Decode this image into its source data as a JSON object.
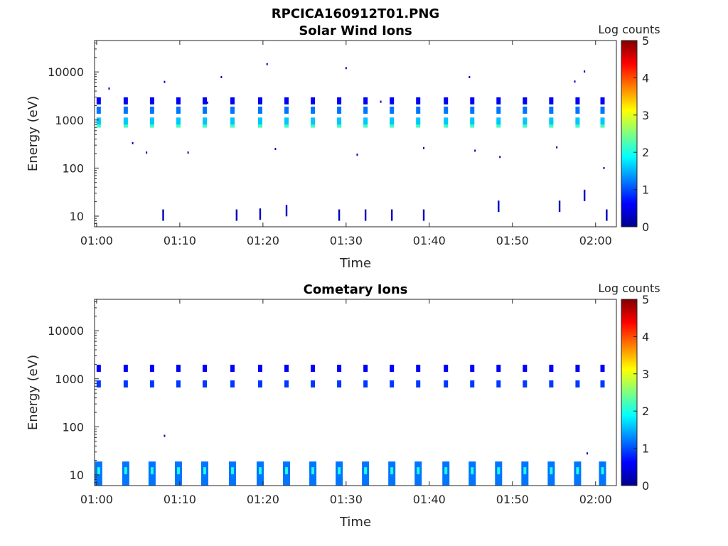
{
  "figure": {
    "title": "RPCICA160912T01.PNG"
  },
  "chart_data": [
    {
      "type": "heatmap",
      "title": "Solar Wind Ions",
      "xlabel": "Time",
      "ylabel": "Energy (eV)",
      "y_scale": "log",
      "xlim": [
        "00:59:45",
        "02:02:30"
      ],
      "ylim": [
        6,
        45000
      ],
      "x_ticks": [
        "01:00",
        "01:10",
        "01:20",
        "01:30",
        "01:40",
        "01:50",
        "02:00"
      ],
      "y_ticks": [
        10,
        100,
        1000,
        10000
      ],
      "y_tick_labels": [
        "10",
        "100",
        "1000",
        "10000"
      ],
      "colorbar": {
        "label": "Log counts",
        "range": [
          0,
          5
        ],
        "ticks": [
          "0",
          "1",
          "2",
          "3",
          "4",
          "5"
        ],
        "colormap": "jet"
      },
      "periodic_bursts": {
        "times": [
          "01:00:15",
          "01:03:30",
          "01:06:40",
          "01:09:50",
          "01:13:00",
          "01:16:20",
          "01:19:40",
          "01:22:50",
          "01:26:00",
          "01:29:10",
          "01:32:20",
          "01:35:30",
          "01:38:40",
          "01:42:00",
          "01:45:10",
          "01:48:20",
          "01:51:30",
          "01:54:40",
          "01:57:50",
          "02:00:50"
        ],
        "energy_bands_eV": [
          {
            "energy": 820,
            "log_counts": 2.2
          },
          {
            "energy": 950,
            "log_counts": 1.6
          },
          {
            "energy": 1600,
            "log_counts": 1.2
          },
          {
            "energy": 2500,
            "log_counts": 0.6
          }
        ]
      },
      "scattered_points": [
        {
          "time": "01:01:30",
          "energy": 4500,
          "log_counts": 0.3
        },
        {
          "time": "01:04:20",
          "energy": 330,
          "log_counts": 0.3
        },
        {
          "time": "01:06:00",
          "energy": 210,
          "log_counts": 0.3
        },
        {
          "time": "01:08:10",
          "energy": 6200,
          "log_counts": 0.3
        },
        {
          "time": "01:11:00",
          "energy": 210,
          "log_counts": 0.3
        },
        {
          "time": "01:13:20",
          "energy": 2300,
          "log_counts": 0.3
        },
        {
          "time": "01:15:00",
          "energy": 7800,
          "log_counts": 0.3
        },
        {
          "time": "01:20:30",
          "energy": 14500,
          "log_counts": 0.3
        },
        {
          "time": "01:21:30",
          "energy": 250,
          "log_counts": 0.3
        },
        {
          "time": "01:30:00",
          "energy": 12000,
          "log_counts": 0.3
        },
        {
          "time": "01:31:20",
          "energy": 190,
          "log_counts": 0.3
        },
        {
          "time": "01:34:10",
          "energy": 2400,
          "log_counts": 0.3
        },
        {
          "time": "01:39:20",
          "energy": 260,
          "log_counts": 0.3
        },
        {
          "time": "01:44:50",
          "energy": 7800,
          "log_counts": 0.3
        },
        {
          "time": "01:45:30",
          "energy": 230,
          "log_counts": 0.3
        },
        {
          "time": "01:48:30",
          "energy": 170,
          "log_counts": 0.3
        },
        {
          "time": "01:55:20",
          "energy": 270,
          "log_counts": 0.3
        },
        {
          "time": "01:57:30",
          "energy": 6300,
          "log_counts": 0.3
        },
        {
          "time": "01:58:40",
          "energy": 10200,
          "log_counts": 0.3
        },
        {
          "time": "02:01:00",
          "energy": 100,
          "log_counts": 0.3
        }
      ],
      "low_energy_streaks": [
        {
          "time": "01:08:00",
          "energy": 10.5,
          "log_counts": 0.3
        },
        {
          "time": "01:16:50",
          "energy": 10.5,
          "log_counts": 0.3
        },
        {
          "time": "01:19:40",
          "energy": 11.0,
          "log_counts": 0.3
        },
        {
          "time": "01:22:50",
          "energy": 13.0,
          "log_counts": 0.3
        },
        {
          "time": "01:29:10",
          "energy": 10.5,
          "log_counts": 0.3
        },
        {
          "time": "01:32:20",
          "energy": 10.5,
          "log_counts": 0.3
        },
        {
          "time": "01:35:30",
          "energy": 10.5,
          "log_counts": 0.3
        },
        {
          "time": "01:39:20",
          "energy": 10.5,
          "log_counts": 0.3
        },
        {
          "time": "01:48:20",
          "energy": 16.0,
          "log_counts": 0.3
        },
        {
          "time": "01:55:40",
          "energy": 16.0,
          "log_counts": 0.3
        },
        {
          "time": "01:58:40",
          "energy": 27.0,
          "log_counts": 0.3
        },
        {
          "time": "02:01:20",
          "energy": 10.5,
          "log_counts": 0.3
        }
      ]
    },
    {
      "type": "heatmap",
      "title": "Cometary Ions",
      "xlabel": "Time",
      "ylabel": "Energy (eV)",
      "y_scale": "log",
      "xlim": [
        "00:59:45",
        "02:02:30"
      ],
      "ylim": [
        6,
        45000
      ],
      "x_ticks": [
        "01:00",
        "01:10",
        "01:20",
        "01:30",
        "01:40",
        "01:50",
        "02:00"
      ],
      "y_ticks": [
        10,
        100,
        1000,
        10000
      ],
      "y_tick_labels": [
        "10",
        "100",
        "1000",
        "10000"
      ],
      "colorbar": {
        "label": "Log counts",
        "range": [
          0,
          5
        ],
        "ticks": [
          "0",
          "1",
          "2",
          "3",
          "4",
          "5"
        ],
        "colormap": "jet"
      },
      "periodic_bursts": {
        "times": [
          "01:00:15",
          "01:03:30",
          "01:06:40",
          "01:09:50",
          "01:13:00",
          "01:16:20",
          "01:19:40",
          "01:22:50",
          "01:26:00",
          "01:29:10",
          "01:32:20",
          "01:35:30",
          "01:38:40",
          "01:42:00",
          "01:45:10",
          "01:48:20",
          "01:51:30",
          "01:54:40",
          "01:57:50",
          "02:00:50"
        ],
        "energy_bands_eV": [
          {
            "energy": 780,
            "log_counts": 0.9
          },
          {
            "energy": 1650,
            "log_counts": 0.6
          }
        ],
        "low_energy_band": {
          "energy_min": 6,
          "energy_max": 19,
          "log_counts": 1.2
        }
      },
      "scattered_points": [
        {
          "time": "01:08:10",
          "energy": 65,
          "log_counts": 0.3
        },
        {
          "time": "01:59:00",
          "energy": 28,
          "log_counts": 0.3
        }
      ]
    }
  ]
}
